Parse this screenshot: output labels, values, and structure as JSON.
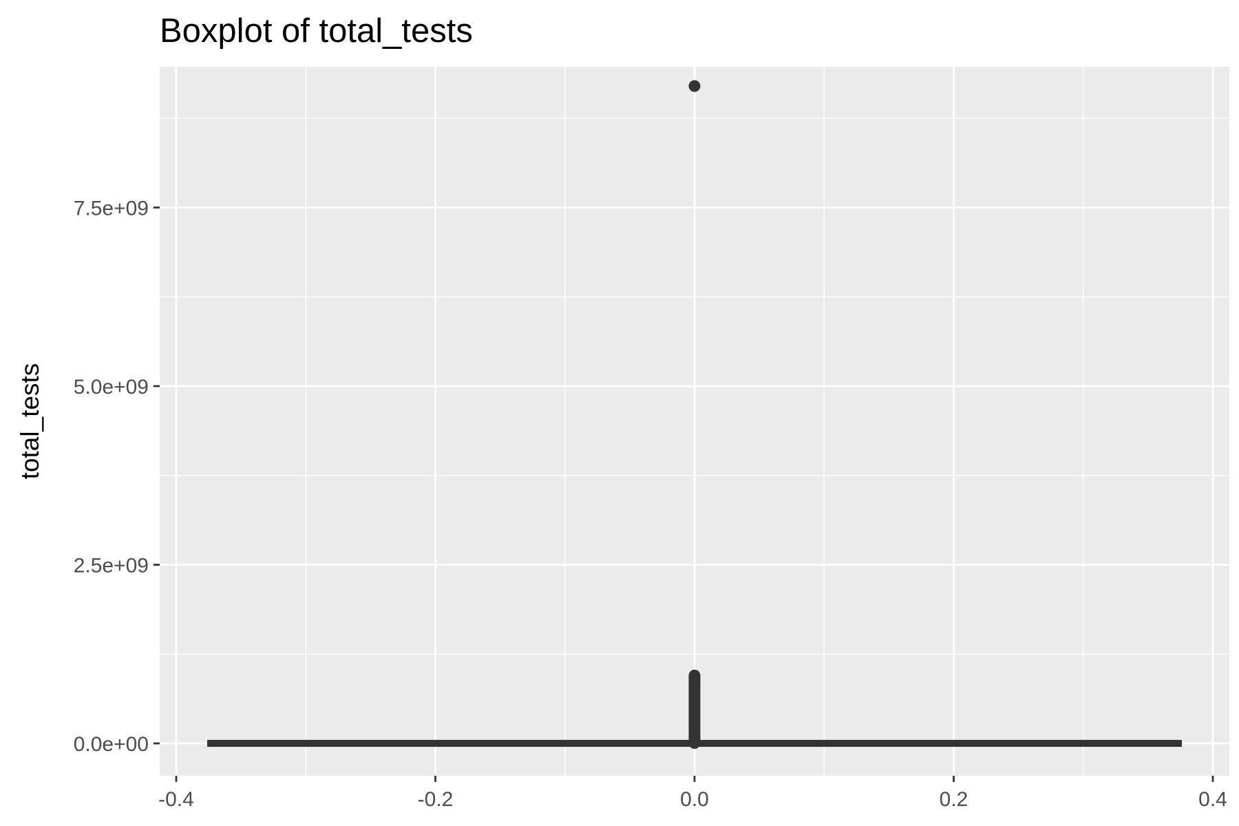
{
  "chart_data": {
    "type": "boxplot",
    "title": "Boxplot of total_tests",
    "xlabel": "",
    "ylabel": "total_tests",
    "xlim": [
      -0.4,
      0.4
    ],
    "ylim": [
      0,
      9500000000
    ],
    "x_ticks": [
      -0.4,
      -0.2,
      0.0,
      0.2,
      0.4
    ],
    "x_tick_labels": [
      "-0.4",
      "-0.2",
      "0.0",
      "0.2",
      "0.4"
    ],
    "y_ticks": [
      0,
      2500000000,
      5000000000,
      7500000000
    ],
    "y_tick_labels": [
      "0.0e+00",
      "2.5e+09",
      "5.0e+09",
      "7.5e+09"
    ],
    "grid": true,
    "box": {
      "x": 0.0,
      "width": 0.75,
      "q1": 0,
      "median": 0,
      "q3": 1000000,
      "whisker_low": 0,
      "whisker_high": 2500000
    },
    "outliers": [
      9200000000,
      950000000,
      930000000,
      910000000,
      890000000,
      870000000,
      850000000,
      820000000,
      790000000,
      760000000,
      730000000,
      700000000,
      670000000,
      640000000,
      610000000,
      580000000,
      550000000,
      520000000,
      490000000,
      460000000,
      430000000,
      400000000,
      370000000,
      340000000,
      310000000,
      280000000,
      250000000,
      220000000,
      190000000,
      160000000,
      130000000,
      100000000,
      80000000,
      60000000,
      40000000,
      25000000,
      15000000,
      8000000,
      5000000
    ],
    "colors": {
      "panel_background": "#ebebeb",
      "grid_major": "#ffffff",
      "grid_minor": "#f5f5f5",
      "box_line": "#333333",
      "outlier": "#333333",
      "tick_label": "#4d4d4d",
      "tick_mark": "#333333"
    }
  }
}
